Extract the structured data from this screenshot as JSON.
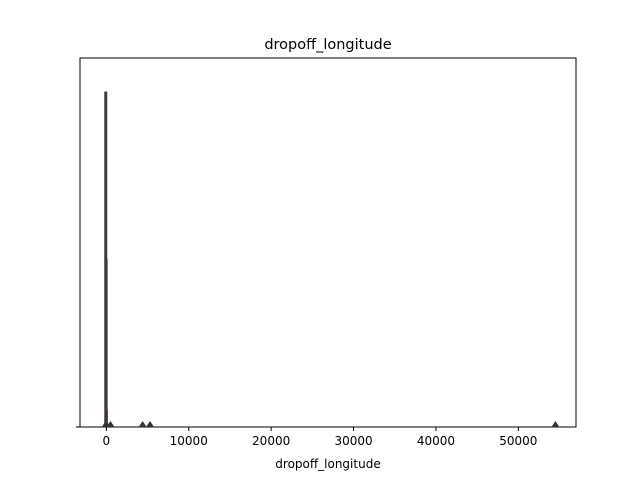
{
  "chart_data": {
    "type": "histogram",
    "title": "dropoff_longitude",
    "xlabel": "dropoff_longitude",
    "ylabel": "",
    "xlim": [
      -3200,
      57000
    ],
    "ylim": [
      0,
      1.1
    ],
    "x_ticks": [
      0,
      10000,
      20000,
      30000,
      40000,
      50000
    ],
    "x_tick_labels": [
      "0",
      "10000",
      "20000",
      "30000",
      "40000",
      "50000"
    ],
    "y_ticks": [
      0
    ],
    "y_tick_labels": [
      ""
    ],
    "grid": false,
    "legend": "none",
    "colors": {
      "bar": "#3b3b3b",
      "kde": "#8b1a1a",
      "marker": "#333333"
    },
    "series": [
      {
        "kind": "bars",
        "values": [
          {
            "x": -74,
            "height": 1.0
          },
          {
            "x": -30,
            "height": 0.5
          },
          {
            "x": 0,
            "height": 0.05
          },
          {
            "x": 300,
            "height": 0.01
          }
        ]
      },
      {
        "kind": "kde",
        "values": [
          {
            "x": -74,
            "height": 0.06
          }
        ]
      },
      {
        "kind": "rug-markers",
        "values": [
          {
            "x": -74
          },
          {
            "x": 500
          },
          {
            "x": 4400
          },
          {
            "x": 5300
          },
          {
            "x": 54500
          }
        ]
      }
    ]
  }
}
